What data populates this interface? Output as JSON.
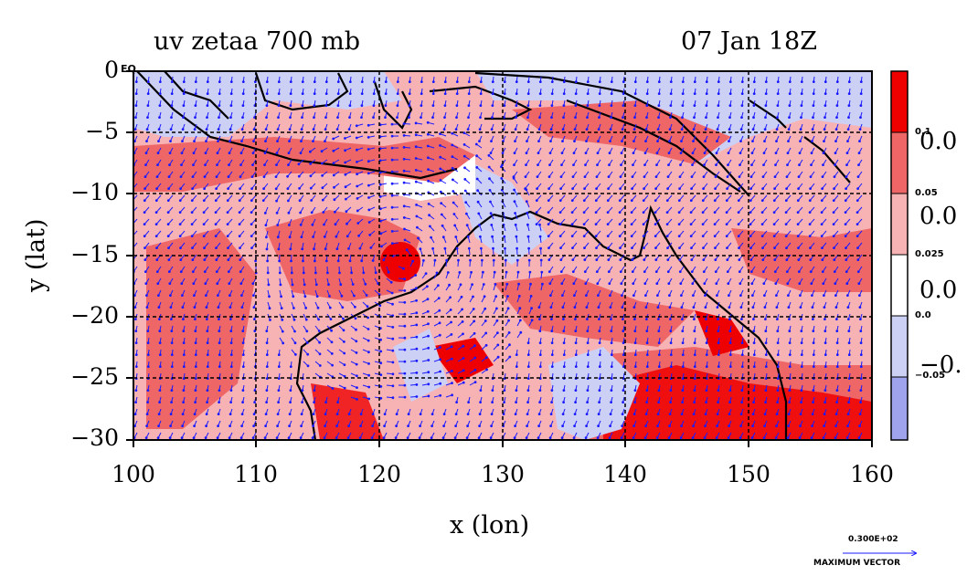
{
  "title": "uv zetaa 700 mb",
  "datetime": "07 Jan 18Z",
  "xlabel": "x (lon)",
  "ylabel": "y (lat)",
  "equator_label": "EQ",
  "x_ticks": [
    "100",
    "110",
    "120",
    "130",
    "140",
    "150",
    "160"
  ],
  "y_ticks": [
    "0",
    "−5",
    "−10",
    "−15",
    "−20",
    "−25",
    "−30"
  ],
  "colorbar": {
    "small_labels": [
      "0.1",
      "0.05",
      "0.025",
      "0.0",
      "−0.05"
    ],
    "big_labels": [
      "0.0",
      "0.0",
      "0.0",
      "−0."
    ],
    "colors": [
      "#ee0000",
      "#ee6666",
      "#f7b3b3",
      "#ffffff",
      "#ccd0f5",
      "#9fa3ee"
    ]
  },
  "vector_legend": {
    "value": "0.300E+02",
    "label": "MAXIMUM VECTOR"
  },
  "colors": {
    "land_line": "#000000",
    "vector": "#1a1aff",
    "contour": "#dd0000"
  },
  "chart_data": {
    "type": "heatmap",
    "title": "uv zetaa 700 mb",
    "xlabel": "x (lon)",
    "ylabel": "y (lat)",
    "xlim": [
      100,
      160
    ],
    "ylim": [
      -30,
      0
    ],
    "grid": true
  }
}
